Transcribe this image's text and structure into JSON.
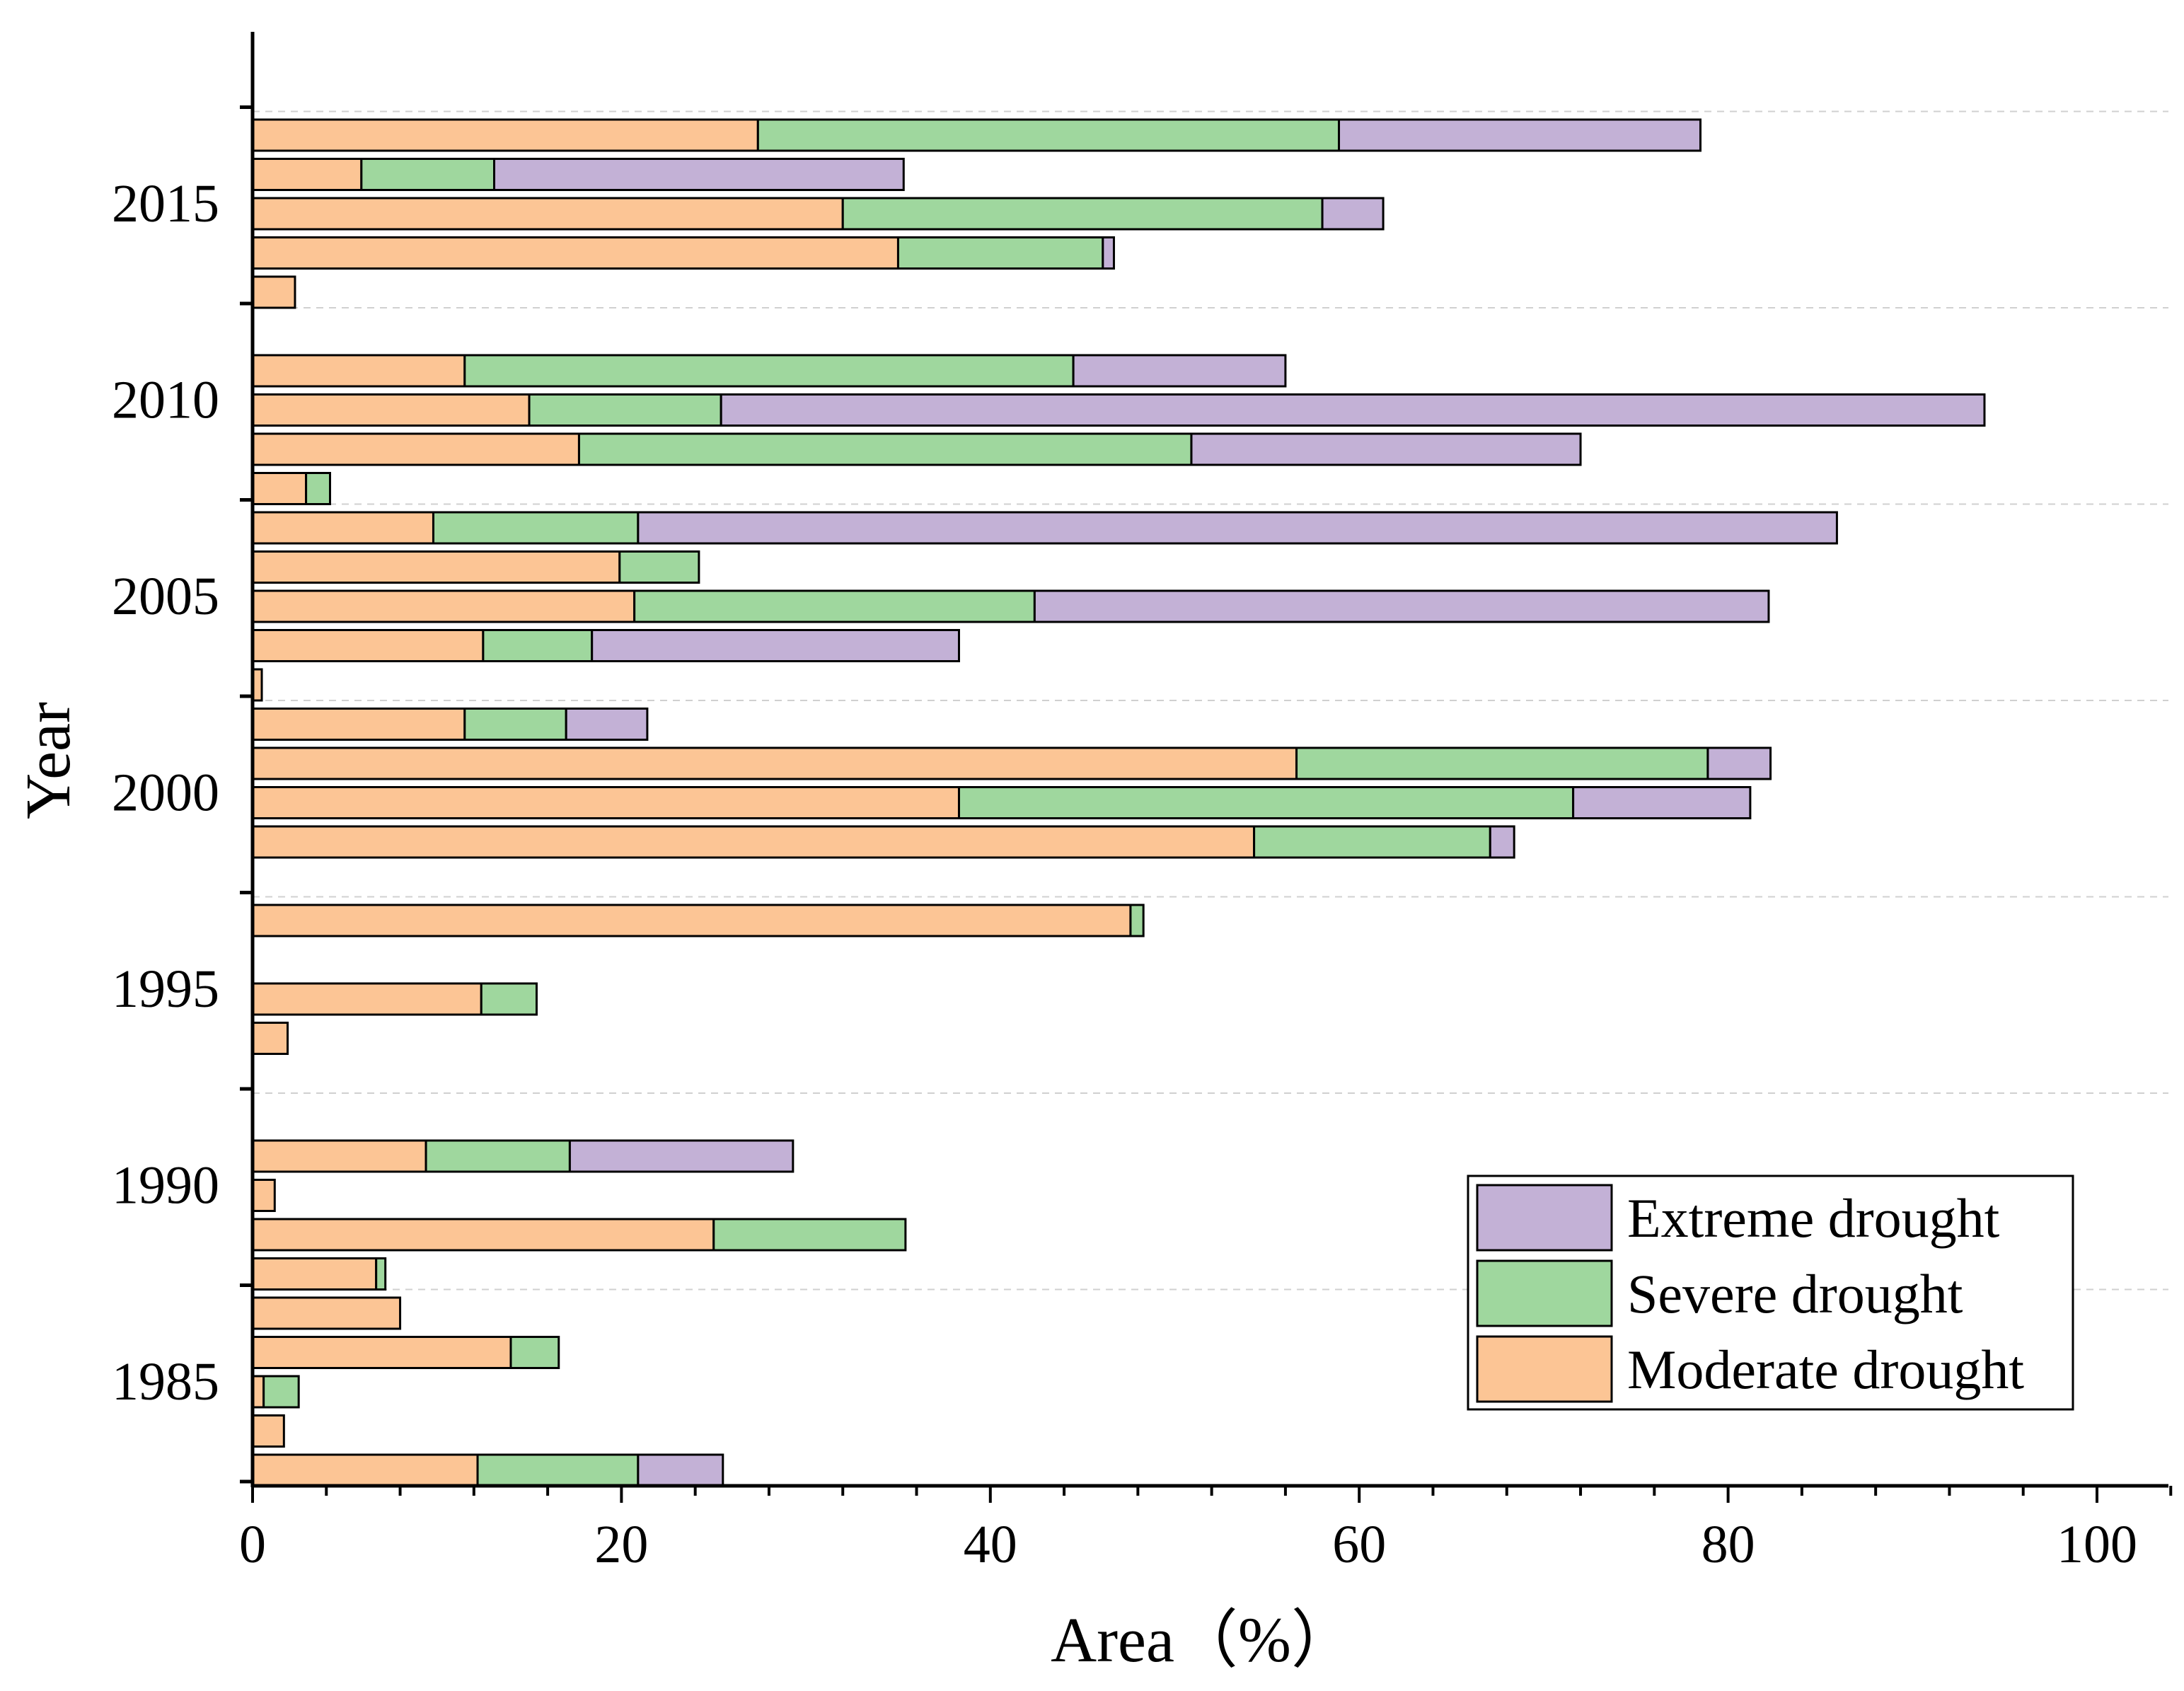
{
  "chart_data": {
    "type": "bar",
    "orientation": "horizontal",
    "stacked": true,
    "xlabel": "Area（%）",
    "ylabel": "Year",
    "xlim": [
      0,
      104
    ],
    "xticks": [
      0,
      20,
      40,
      60,
      80,
      100
    ],
    "year_labels": [
      "1985",
      "1990",
      "1995",
      "2000",
      "2005",
      "2010",
      "2015"
    ],
    "grid": "dashed horizontal separators between year groups",
    "legend_position": "bottom-right",
    "series": [
      {
        "name": "Extreme drought",
        "key": "extreme",
        "color": "#c3b1d6"
      },
      {
        "name": "Severe drought",
        "key": "severe",
        "color": "#9fd79e"
      },
      {
        "name": "Moderate drought",
        "key": "moderate",
        "color": "#fcc595"
      }
    ],
    "groups": [
      {
        "year": "1985",
        "bars": [
          {
            "moderate": 12.2,
            "severe": 8.7,
            "extreme": 4.6
          },
          {
            "moderate": 1.7,
            "severe": 0,
            "extreme": 0
          },
          {
            "moderate": 0.6,
            "severe": 1.9,
            "extreme": 0
          },
          {
            "moderate": 14.0,
            "severe": 2.6,
            "extreme": 0
          },
          {
            "moderate": 8.0,
            "severe": 0,
            "extreme": 0
          }
        ]
      },
      {
        "year": "1990",
        "bars": [
          {
            "moderate": 6.7,
            "severe": 0.5,
            "extreme": 0
          },
          {
            "moderate": 25.0,
            "severe": 10.4,
            "extreme": 0
          },
          {
            "moderate": 1.2,
            "severe": 0,
            "extreme": 0
          },
          {
            "moderate": 9.4,
            "severe": 7.8,
            "extreme": 12.1
          },
          {
            "moderate": 0,
            "severe": 0,
            "extreme": 0
          }
        ]
      },
      {
        "year": "1995",
        "bars": [
          {
            "moderate": 0,
            "severe": 0,
            "extreme": 0
          },
          {
            "moderate": 1.9,
            "severe": 0,
            "extreme": 0
          },
          {
            "moderate": 12.4,
            "severe": 3.0,
            "extreme": 0
          },
          {
            "moderate": 0,
            "severe": 0,
            "extreme": 0
          },
          {
            "moderate": 47.6,
            "severe": 0.7,
            "extreme": 0
          }
        ]
      },
      {
        "year": "2000",
        "bars": [
          {
            "moderate": 0,
            "severe": 0,
            "extreme": 0
          },
          {
            "moderate": 54.3,
            "severe": 12.8,
            "extreme": 1.3
          },
          {
            "moderate": 38.3,
            "severe": 33.3,
            "extreme": 9.6
          },
          {
            "moderate": 56.6,
            "severe": 22.3,
            "extreme": 3.4
          },
          {
            "moderate": 11.5,
            "severe": 5.5,
            "extreme": 4.4
          }
        ]
      },
      {
        "year": "2005",
        "bars": [
          {
            "moderate": 0.5,
            "severe": 0,
            "extreme": 0
          },
          {
            "moderate": 12.5,
            "severe": 5.9,
            "extreme": 19.9
          },
          {
            "moderate": 20.7,
            "severe": 21.7,
            "extreme": 39.8
          },
          {
            "moderate": 19.9,
            "severe": 4.3,
            "extreme": 0
          },
          {
            "moderate": 9.8,
            "severe": 11.1,
            "extreme": 65.0
          }
        ]
      },
      {
        "year": "2010",
        "bars": [
          {
            "moderate": 2.9,
            "severe": 1.3,
            "extreme": 0
          },
          {
            "moderate": 17.7,
            "severe": 33.2,
            "extreme": 21.1
          },
          {
            "moderate": 15.0,
            "severe": 10.4,
            "extreme": 68.5
          },
          {
            "moderate": 11.5,
            "severe": 33.0,
            "extreme": 11.5
          },
          {
            "moderate": 0,
            "severe": 0,
            "extreme": 0
          }
        ]
      },
      {
        "year": "2015",
        "bars": [
          {
            "moderate": 2.3,
            "severe": 0,
            "extreme": 0
          },
          {
            "moderate": 35.0,
            "severe": 11.1,
            "extreme": 0.6
          },
          {
            "moderate": 32.0,
            "severe": 26.0,
            "extreme": 3.3
          },
          {
            "moderate": 5.9,
            "severe": 7.2,
            "extreme": 22.2
          },
          {
            "moderate": 27.4,
            "severe": 31.5,
            "extreme": 19.6
          }
        ]
      }
    ]
  }
}
